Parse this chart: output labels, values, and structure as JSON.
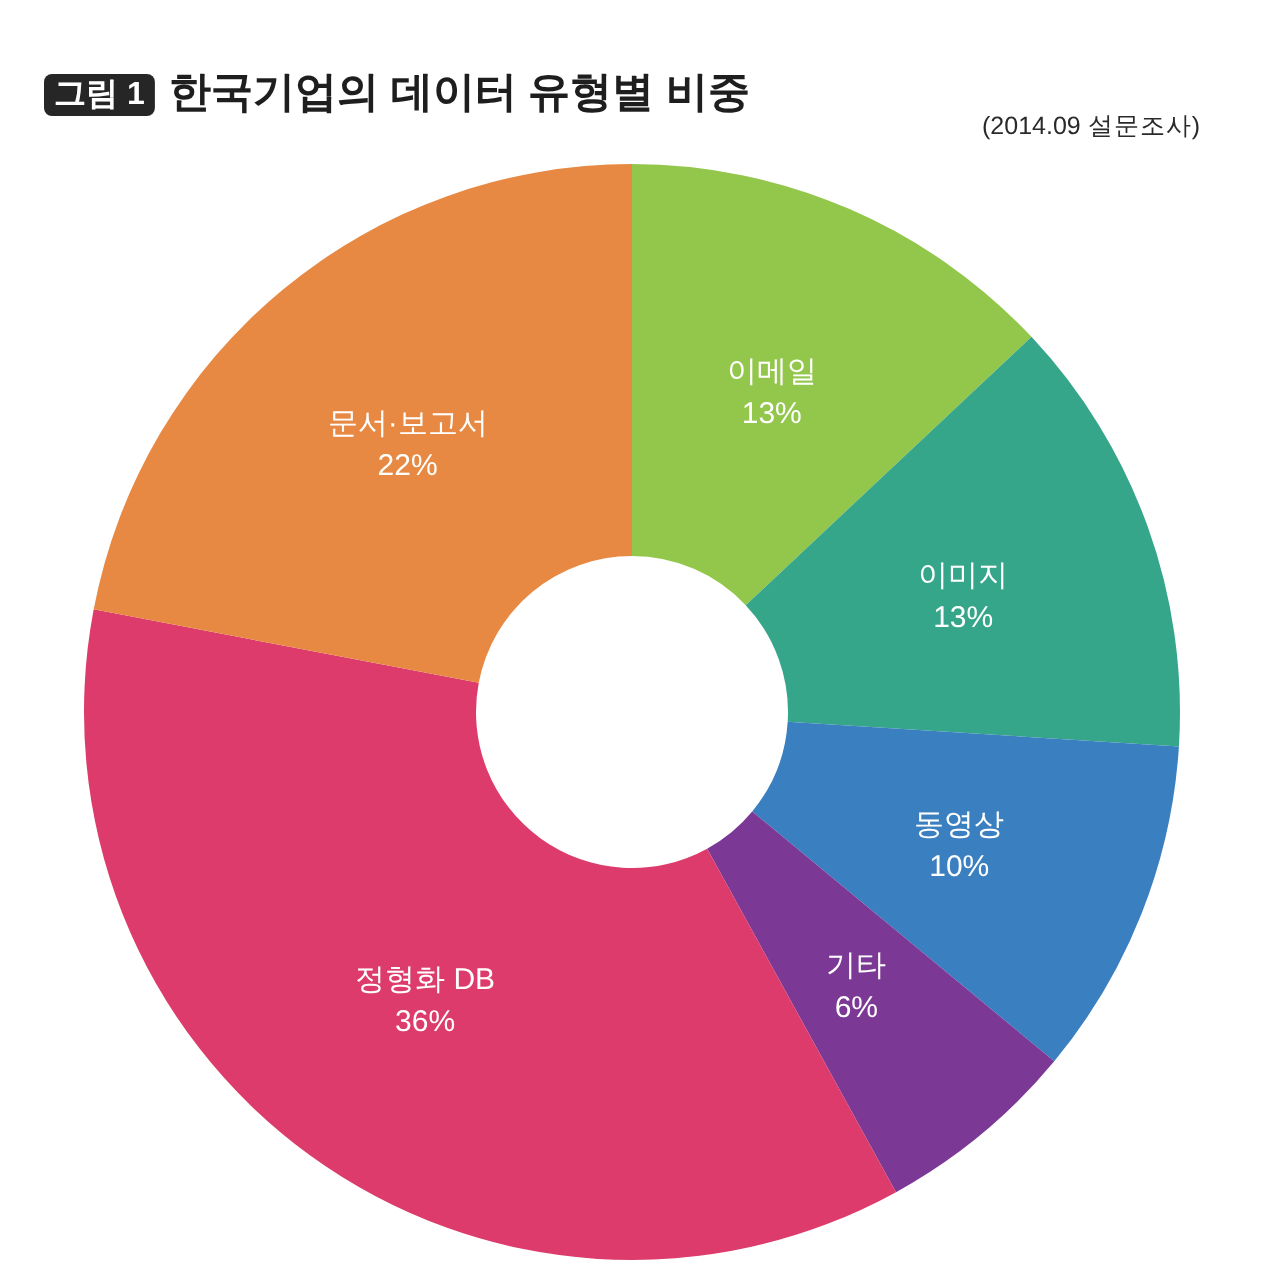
{
  "chart_data": {
    "type": "donut",
    "title": "한국기업의 데이터 유형별 비중",
    "annotations": [
      "그림 1",
      "(2014.09 설문조사)"
    ],
    "categories": [
      "이메일",
      "이미지",
      "동영상",
      "기타",
      "정형화 DB",
      "문서·보고서"
    ],
    "values": [
      13,
      13,
      10,
      6,
      36,
      22
    ],
    "colors": [
      "#93c74b",
      "#36a68a",
      "#3a7fc0",
      "#7b3895",
      "#dc3b6b",
      "#e78942"
    ],
    "value_labels": [
      "13%",
      "13%",
      "10%",
      "6%",
      "36%",
      "22%"
    ]
  }
}
